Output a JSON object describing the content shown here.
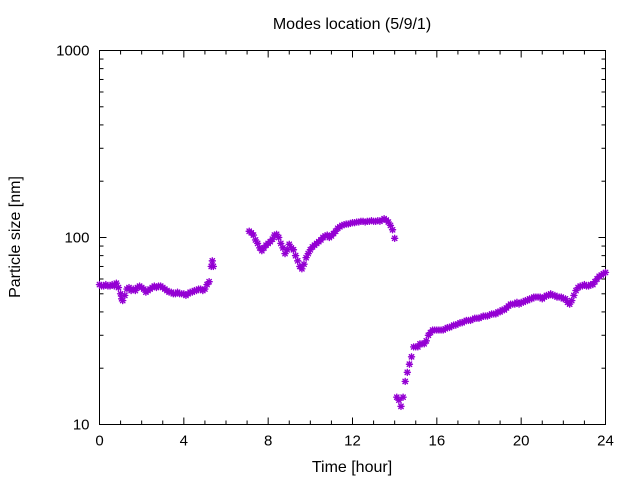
{
  "chart_data": {
    "type": "scatter",
    "title": "Modes location (5/9/1)",
    "xlabel": "Time [hour]",
    "ylabel": "Particle size [nm]",
    "xlim": [
      0,
      24
    ],
    "ylim": [
      10,
      1000
    ],
    "yscale": "log",
    "x_ticks": [
      0,
      4,
      8,
      12,
      16,
      20,
      24
    ],
    "x_tick_labels": [
      "0",
      "4",
      "8",
      "12",
      "16",
      "20",
      "24"
    ],
    "y_ticks": [
      10,
      100,
      1000
    ],
    "y_tick_labels": [
      "10",
      "100",
      "1000"
    ],
    "grid": false,
    "marker": "asterisk",
    "colors": {
      "series": "#9400D3"
    },
    "series": [
      {
        "name": "",
        "points": [
          [
            0.0,
            56
          ],
          [
            0.1,
            55
          ],
          [
            0.2,
            55
          ],
          [
            0.3,
            56
          ],
          [
            0.4,
            55
          ],
          [
            0.5,
            55
          ],
          [
            0.6,
            56
          ],
          [
            0.7,
            55
          ],
          [
            0.8,
            57
          ],
          [
            0.9,
            54
          ],
          [
            1.0,
            50
          ],
          [
            1.05,
            47
          ],
          [
            1.1,
            46
          ],
          [
            1.2,
            49
          ],
          [
            1.3,
            53
          ],
          [
            1.4,
            54
          ],
          [
            1.5,
            52
          ],
          [
            1.6,
            53
          ],
          [
            1.7,
            52
          ],
          [
            1.8,
            54
          ],
          [
            1.9,
            55
          ],
          [
            2.0,
            54
          ],
          [
            2.1,
            53
          ],
          [
            2.2,
            51
          ],
          [
            2.3,
            52
          ],
          [
            2.4,
            53
          ],
          [
            2.5,
            54
          ],
          [
            2.6,
            55
          ],
          [
            2.7,
            54
          ],
          [
            2.8,
            55
          ],
          [
            2.9,
            55
          ],
          [
            3.0,
            54
          ],
          [
            3.1,
            53
          ],
          [
            3.2,
            52
          ],
          [
            3.3,
            51
          ],
          [
            3.4,
            51
          ],
          [
            3.5,
            50
          ],
          [
            3.6,
            50
          ],
          [
            3.7,
            51
          ],
          [
            3.8,
            50
          ],
          [
            3.9,
            50
          ],
          [
            4.0,
            50
          ],
          [
            4.1,
            49
          ],
          [
            4.2,
            50
          ],
          [
            4.3,
            51
          ],
          [
            4.4,
            51
          ],
          [
            4.5,
            52
          ],
          [
            4.6,
            52
          ],
          [
            4.7,
            53
          ],
          [
            4.8,
            53
          ],
          [
            4.9,
            52
          ],
          [
            5.0,
            53
          ],
          [
            5.1,
            56
          ],
          [
            5.2,
            58
          ],
          [
            5.3,
            70
          ],
          [
            5.35,
            75
          ],
          [
            5.4,
            70
          ],
          [
            7.1,
            108
          ],
          [
            7.2,
            106
          ],
          [
            7.3,
            103
          ],
          [
            7.4,
            97
          ],
          [
            7.5,
            93
          ],
          [
            7.6,
            88
          ],
          [
            7.7,
            85
          ],
          [
            7.8,
            88
          ],
          [
            7.9,
            91
          ],
          [
            8.0,
            93
          ],
          [
            8.1,
            95
          ],
          [
            8.2,
            98
          ],
          [
            8.3,
            103
          ],
          [
            8.4,
            104
          ],
          [
            8.5,
            100
          ],
          [
            8.6,
            93
          ],
          [
            8.7,
            88
          ],
          [
            8.8,
            82
          ],
          [
            8.9,
            86
          ],
          [
            9.0,
            92
          ],
          [
            9.1,
            88
          ],
          [
            9.2,
            86
          ],
          [
            9.3,
            80
          ],
          [
            9.4,
            75
          ],
          [
            9.5,
            70
          ],
          [
            9.6,
            68
          ],
          [
            9.7,
            72
          ],
          [
            9.8,
            78
          ],
          [
            9.9,
            82
          ],
          [
            10.0,
            86
          ],
          [
            10.1,
            89
          ],
          [
            10.2,
            91
          ],
          [
            10.3,
            93
          ],
          [
            10.4,
            95
          ],
          [
            10.5,
            97
          ],
          [
            10.6,
            100
          ],
          [
            10.7,
            102
          ],
          [
            10.8,
            103
          ],
          [
            10.9,
            100
          ],
          [
            11.0,
            102
          ],
          [
            11.1,
            105
          ],
          [
            11.2,
            108
          ],
          [
            11.3,
            112
          ],
          [
            11.4,
            114
          ],
          [
            11.5,
            116
          ],
          [
            11.6,
            117
          ],
          [
            11.7,
            118
          ],
          [
            11.8,
            118
          ],
          [
            11.9,
            119
          ],
          [
            12.0,
            120
          ],
          [
            12.1,
            120
          ],
          [
            12.2,
            121
          ],
          [
            12.3,
            121
          ],
          [
            12.4,
            122
          ],
          [
            12.5,
            122
          ],
          [
            12.6,
            121
          ],
          [
            12.7,
            122
          ],
          [
            12.8,
            122
          ],
          [
            12.9,
            123
          ],
          [
            13.0,
            122
          ],
          [
            13.1,
            122
          ],
          [
            13.2,
            123
          ],
          [
            13.3,
            122
          ],
          [
            13.4,
            124
          ],
          [
            13.5,
            126
          ],
          [
            13.6,
            124
          ],
          [
            13.7,
            121
          ],
          [
            13.8,
            116
          ],
          [
            13.9,
            110
          ],
          [
            14.0,
            99
          ],
          [
            14.1,
            14
          ],
          [
            14.2,
            13.5
          ],
          [
            14.3,
            12.5
          ],
          [
            14.4,
            14
          ],
          [
            14.5,
            17
          ],
          [
            14.6,
            19
          ],
          [
            14.7,
            21
          ],
          [
            14.8,
            23
          ],
          [
            14.9,
            26
          ],
          [
            15.0,
            26
          ],
          [
            15.1,
            26
          ],
          [
            15.2,
            27
          ],
          [
            15.3,
            27
          ],
          [
            15.4,
            27
          ],
          [
            15.5,
            28
          ],
          [
            15.6,
            30
          ],
          [
            15.7,
            31
          ],
          [
            15.8,
            32
          ],
          [
            15.9,
            32
          ],
          [
            16.0,
            32
          ],
          [
            16.1,
            32
          ],
          [
            16.2,
            32
          ],
          [
            16.3,
            32
          ],
          [
            16.4,
            32.5
          ],
          [
            16.5,
            33
          ],
          [
            16.6,
            33
          ],
          [
            16.7,
            33.5
          ],
          [
            16.8,
            34
          ],
          [
            16.9,
            34
          ],
          [
            17.0,
            34.5
          ],
          [
            17.1,
            35
          ],
          [
            17.2,
            35
          ],
          [
            17.3,
            35.5
          ],
          [
            17.4,
            36
          ],
          [
            17.5,
            36
          ],
          [
            17.6,
            36
          ],
          [
            17.7,
            36.5
          ],
          [
            17.8,
            37
          ],
          [
            17.9,
            37
          ],
          [
            18.0,
            37
          ],
          [
            18.1,
            37.5
          ],
          [
            18.2,
            38
          ],
          [
            18.3,
            38
          ],
          [
            18.4,
            38
          ],
          [
            18.5,
            38.5
          ],
          [
            18.6,
            39
          ],
          [
            18.7,
            39
          ],
          [
            18.8,
            39
          ],
          [
            18.9,
            40
          ],
          [
            19.0,
            40
          ],
          [
            19.1,
            41
          ],
          [
            19.2,
            41
          ],
          [
            19.3,
            42
          ],
          [
            19.4,
            43
          ],
          [
            19.5,
            44
          ],
          [
            19.6,
            44
          ],
          [
            19.7,
            44
          ],
          [
            19.8,
            45
          ],
          [
            19.9,
            44
          ],
          [
            20.0,
            45
          ],
          [
            20.1,
            45
          ],
          [
            20.2,
            46
          ],
          [
            20.3,
            46
          ],
          [
            20.4,
            47
          ],
          [
            20.5,
            47
          ],
          [
            20.6,
            48
          ],
          [
            20.7,
            48
          ],
          [
            20.8,
            48
          ],
          [
            20.9,
            48
          ],
          [
            21.0,
            47
          ],
          [
            21.1,
            48
          ],
          [
            21.2,
            49
          ],
          [
            21.3,
            49
          ],
          [
            21.4,
            50
          ],
          [
            21.5,
            49
          ],
          [
            21.6,
            49
          ],
          [
            21.7,
            48
          ],
          [
            21.8,
            48
          ],
          [
            21.9,
            48
          ],
          [
            22.0,
            47
          ],
          [
            22.1,
            47
          ],
          [
            22.2,
            45
          ],
          [
            22.3,
            44
          ],
          [
            22.4,
            46
          ],
          [
            22.5,
            49
          ],
          [
            22.6,
            52
          ],
          [
            22.7,
            54
          ],
          [
            22.8,
            55
          ],
          [
            22.9,
            55
          ],
          [
            23.0,
            56
          ],
          [
            23.1,
            55
          ],
          [
            23.2,
            55
          ],
          [
            23.3,
            56
          ],
          [
            23.4,
            56
          ],
          [
            23.5,
            58
          ],
          [
            23.6,
            60
          ],
          [
            23.7,
            62
          ],
          [
            23.8,
            63
          ],
          [
            23.9,
            64
          ],
          [
            24.0,
            65
          ]
        ]
      }
    ]
  }
}
